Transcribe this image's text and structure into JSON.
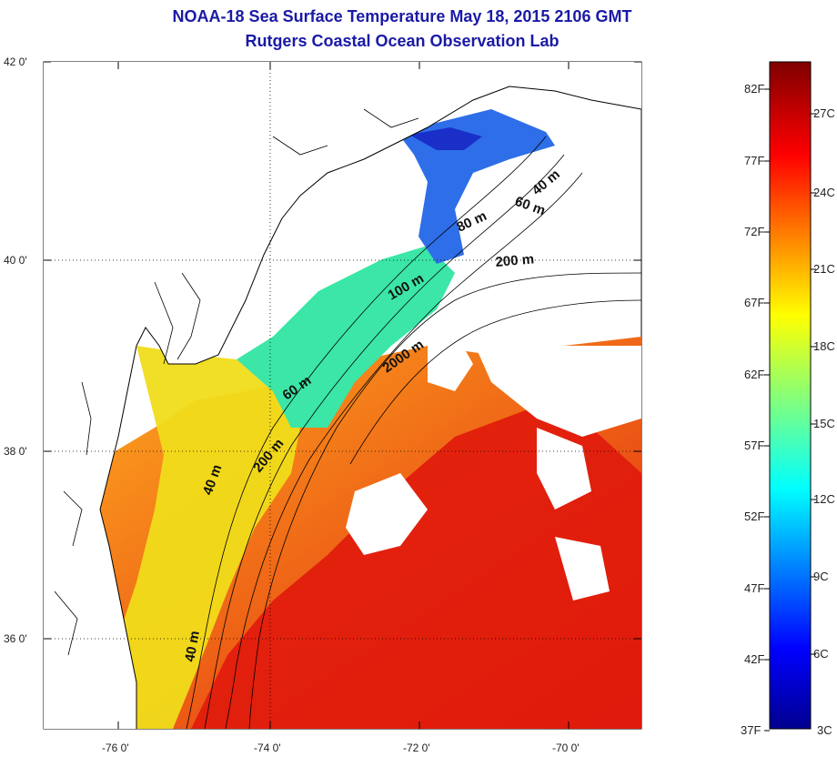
{
  "header": {
    "title": "NOAA-18 Sea Surface Temperature May 18, 2015 2106 GMT",
    "subtitle": "Rutgers Coastal Ocean Observation Lab"
  },
  "map": {
    "lat_labels": [
      "42 0'",
      "40 0'",
      "38 0'",
      "36 0'"
    ],
    "lon_labels": [
      "-76 0'",
      "-74 0'",
      "-72 0'",
      "-70 0'"
    ],
    "depth_contours": [
      "40 m",
      "60 m",
      "80 m",
      "200 m",
      "100 m",
      "2000 m",
      "60 m",
      "200 m",
      "40 m",
      "40 m"
    ],
    "colors": {
      "land": "#ffffff",
      "coast": "#000000",
      "cold": "#1e50d8",
      "mid": "#2ee0b0",
      "warm": "#ffd21e",
      "hot": "#e21a0c"
    }
  },
  "colorbar": {
    "fahrenheit_labels": [
      "82F",
      "77F",
      "72F",
      "67F",
      "62F",
      "57F",
      "52F",
      "47F",
      "42F",
      "37F"
    ],
    "celsius_labels": [
      "27C",
      "24C",
      "21C",
      "18C",
      "15C",
      "12C",
      "9C",
      "6C",
      "3C"
    ]
  }
}
